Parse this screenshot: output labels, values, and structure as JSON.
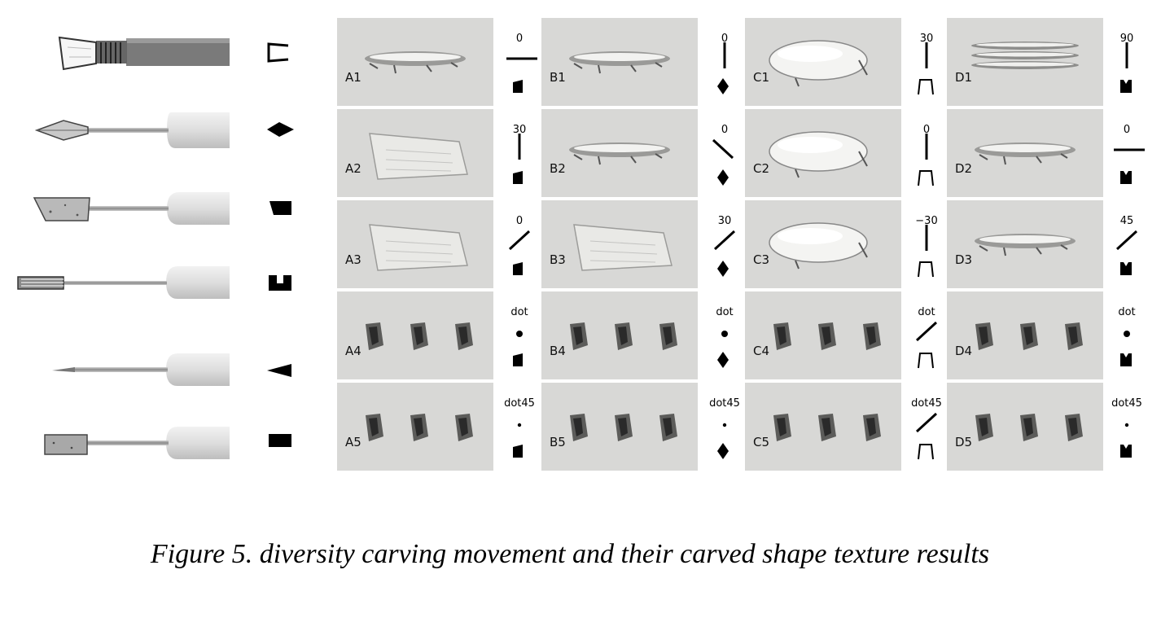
{
  "figure": {
    "caption": "Figure 5. diversity carving movement and their carved shape texture results",
    "tools": [
      {
        "name": "flat-chisel",
        "cross_section": "open-trapezoid"
      },
      {
        "name": "diamond-point",
        "cross_section": "diamond"
      },
      {
        "name": "skew-chisel",
        "cross_section": "quadrilateral"
      },
      {
        "name": "forked-chisel",
        "cross_section": "notched-square"
      },
      {
        "name": "needle-point",
        "cross_section": "triangle"
      },
      {
        "name": "square-chisel",
        "cross_section": "rectangle"
      }
    ],
    "columns": [
      {
        "id": "A",
        "tool_shape": "skew-block",
        "panels": [
          {
            "label": "A1",
            "param": "0",
            "stroke": "horizontal",
            "result": "groove"
          },
          {
            "label": "A2",
            "param": "30",
            "stroke": "vertical",
            "result": "scraped-area"
          },
          {
            "label": "A3",
            "param": "0",
            "stroke": "diagonal-up",
            "result": "scraped-area"
          },
          {
            "label": "A4",
            "param": "dot",
            "stroke": "dot",
            "result": "dots"
          },
          {
            "label": "A5",
            "param": "dot45",
            "stroke": "small-dot",
            "result": "dots"
          }
        ]
      },
      {
        "id": "B",
        "tool_shape": "diamond",
        "panels": [
          {
            "label": "B1",
            "param": "0",
            "stroke": "vertical",
            "result": "groove"
          },
          {
            "label": "B2",
            "param": "0",
            "stroke": "diagonal-down",
            "result": "groove"
          },
          {
            "label": "B3",
            "param": "30",
            "stroke": "diagonal-up",
            "result": "scraped-area"
          },
          {
            "label": "B4",
            "param": "dot",
            "stroke": "dot",
            "result": "dots"
          },
          {
            "label": "B5",
            "param": "dot45",
            "stroke": "small-dot",
            "result": "dots"
          }
        ]
      },
      {
        "id": "C",
        "tool_shape": "open-trapezoid",
        "panels": [
          {
            "label": "C1",
            "param": "30",
            "stroke": "vertical",
            "result": "smooth-oval"
          },
          {
            "label": "C2",
            "param": "0",
            "stroke": "vertical",
            "result": "smooth-oval"
          },
          {
            "label": "C3",
            "param": "−30",
            "stroke": "vertical",
            "result": "smooth-oval"
          },
          {
            "label": "C4",
            "param": "dot",
            "stroke": "diagonal-up",
            "result": "dots"
          },
          {
            "label": "C5",
            "param": "dot45",
            "stroke": "diagonal-up",
            "result": "dots"
          }
        ]
      },
      {
        "id": "D",
        "tool_shape": "notched-square",
        "panels": [
          {
            "label": "D1",
            "param": "90",
            "stroke": "vertical",
            "result": "multi-groove"
          },
          {
            "label": "D2",
            "param": "0",
            "stroke": "horizontal",
            "result": "groove"
          },
          {
            "label": "D3",
            "param": "45",
            "stroke": "diagonal-up",
            "result": "groove"
          },
          {
            "label": "D4",
            "param": "dot",
            "stroke": "dot",
            "result": "dots"
          },
          {
            "label": "D5",
            "param": "dot45",
            "stroke": "small-dot",
            "result": "dots"
          }
        ]
      }
    ]
  }
}
